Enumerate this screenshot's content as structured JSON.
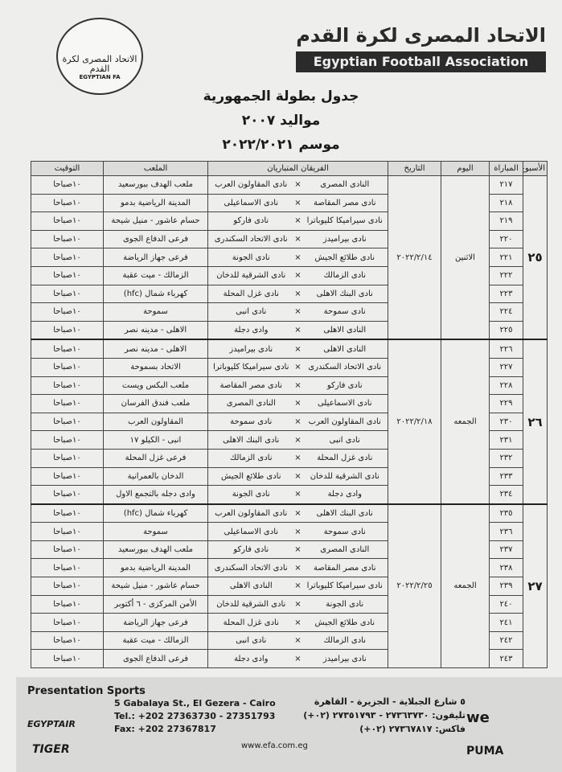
{
  "header": {
    "logo_ar": "الاتحاد المصرى لكرة القدم",
    "logo_en": "EGYPTIAN FA",
    "title_ar": "الاتحاد المصرى لكرة القدم",
    "title_en": "Egyptian Football Association"
  },
  "titles": [
    "جدول بطولة الجمهورية",
    "مواليد ٢٠٠٧",
    "موسم ٢٠٢٢/٢٠٢١"
  ],
  "table": {
    "columns": [
      "الأسبوع",
      "المباراة",
      "اليوم",
      "التاريخ",
      "الفريقان المتباريان",
      "الملعب",
      "التوقيت"
    ],
    "vs": "×",
    "weeks": [
      {
        "week": "٢٥",
        "day": "الاثنين",
        "date": "٢٠٢٢/٢/١٤",
        "matches": [
          {
            "no": "٢١٧",
            "home": "النادى المصرى",
            "away": "نادى المقاولون العرب",
            "venue": "ملعب الهدف ببورسعيد",
            "time": "١٠صباحا"
          },
          {
            "no": "٢١٨",
            "home": "نادى مصر المقاصة",
            "away": "نادى الاسماعيلى",
            "venue": "المدينة الرياضية بدمو",
            "time": "١٠صباحا"
          },
          {
            "no": "٢١٩",
            "home": "نادى سيراميكا كليوباترا",
            "away": "نادى فاركو",
            "venue": "حسام عاشور - منيل شيحة",
            "time": "١٠صباحا"
          },
          {
            "no": "٢٢٠",
            "home": "نادى بيراميدز",
            "away": "نادى الاتحاد السكندرى",
            "venue": "فرعى الدفاع الجوى",
            "time": "١٠صباحا"
          },
          {
            "no": "٢٢١",
            "home": "نادى طلائع الجيش",
            "away": "نادى الجونة",
            "venue": "فرعى جهاز الرياضة",
            "time": "١٠صباحا"
          },
          {
            "no": "٢٢٢",
            "home": "نادى الزمالك",
            "away": "نادى الشرقية للدخان",
            "venue": "الزمالك - ميت عقبة",
            "time": "١٠صباحا"
          },
          {
            "no": "٢٢٣",
            "home": "نادى البنك الاهلى",
            "away": "نادى غزل المحلة",
            "venue": "كهرباء شمال (hfc)",
            "time": "١٠صباحا"
          },
          {
            "no": "٢٢٤",
            "home": "نادى سموحة",
            "away": "نادى انبى",
            "venue": "سموحة",
            "time": "١٠صباحا"
          },
          {
            "no": "٢٢٥",
            "home": "النادى الاهلى",
            "away": "وادى دجلة",
            "venue": "الاهلى - مدينه نصر",
            "time": "١٠صباحا"
          }
        ]
      },
      {
        "week": "٢٦",
        "day": "الجمعه",
        "date": "٢٠٢٢/٢/١٨",
        "matches": [
          {
            "no": "٢٢٦",
            "home": "النادى الاهلى",
            "away": "نادى بيراميدز",
            "venue": "الاهلى - مدينه نصر",
            "time": "١٠صباحا"
          },
          {
            "no": "٢٢٧",
            "home": "نادى الاتحاد السكندرى",
            "away": "نادى سيراميكا كليوباترا",
            "venue": "الاتحاد بسموحة",
            "time": "١٠صباحا"
          },
          {
            "no": "٢٢٨",
            "home": "نادى فاركو",
            "away": "نادى مصر المقاصة",
            "venue": "ملعب البكس ويست",
            "time": "١٠صباحا"
          },
          {
            "no": "٢٢٩",
            "home": "نادى الاسماعيلى",
            "away": "النادى المصرى",
            "venue": "ملعب فندق الفرسان",
            "time": "١٠صباحا"
          },
          {
            "no": "٢٣٠",
            "home": "نادى المقاولون العرب",
            "away": "نادى سموحة",
            "venue": "المقاولون العرب",
            "time": "١٠صباحا"
          },
          {
            "no": "٢٣١",
            "home": "نادى انبى",
            "away": "نادى البنك الاهلى",
            "venue": "انبى - الكيلو ١٧",
            "time": "١٠صباحا"
          },
          {
            "no": "٢٣٢",
            "home": "نادى غزل المحلة",
            "away": "نادى الزمالك",
            "venue": "فرعى غزل المحلة",
            "time": "١٠صباحا"
          },
          {
            "no": "٢٣٣",
            "home": "نادى الشرقية للدخان",
            "away": "نادى طلائع الجيش",
            "venue": "الدخان بالعمرانية",
            "time": "١٠صباحا"
          },
          {
            "no": "٢٣٤",
            "home": "وادى دجلة",
            "away": "نادى الجونة",
            "venue": "وادى دجله بالتجمع الاول",
            "time": "١٠صباحا"
          }
        ]
      },
      {
        "week": "٢٧",
        "day": "الجمعه",
        "date": "٢٠٢٢/٢/٢٥",
        "matches": [
          {
            "no": "٢٣٥",
            "home": "نادى البنك الاهلى",
            "away": "نادى المقاولون العرب",
            "venue": "كهرباء شمال (hfc)",
            "time": "١٠صباحا"
          },
          {
            "no": "٢٣٦",
            "home": "نادى سموحة",
            "away": "نادى الاسماعيلى",
            "venue": "سموحة",
            "time": "١٠صباحا"
          },
          {
            "no": "٢٣٧",
            "home": "النادى المصرى",
            "away": "نادى فاركو",
            "venue": "ملعب الهدف ببورسعيد",
            "time": "١٠صباحا"
          },
          {
            "no": "٢٣٨",
            "home": "نادى مصر المقاصة",
            "away": "نادى الاتحاد السكندرى",
            "venue": "المدينة الرياضية بدمو",
            "time": "١٠صباحا"
          },
          {
            "no": "٢٣٩",
            "home": "نادى سيراميكا كليوباترا",
            "away": "النادى الاهلى",
            "venue": "حسام عاشور - منيل شيحة",
            "time": "١٠صباحا"
          },
          {
            "no": "٢٤٠",
            "home": "نادى الجونة",
            "away": "نادى الشرقية للدخان",
            "venue": "الأمن المركزى - ٦ أكتوبر",
            "time": "١٠صباحا"
          },
          {
            "no": "٢٤١",
            "home": "نادى طلائع الجيش",
            "away": "نادى غزل المحلة",
            "venue": "فرعى جهاز الرياضة",
            "time": "١٠صباحا"
          },
          {
            "no": "٢٤٢",
            "home": "نادى الزمالك",
            "away": "نادى انبى",
            "venue": "الزمالك - ميت عقبة",
            "time": "١٠صباحا"
          },
          {
            "no": "٢٤٣",
            "home": "نادى بيراميدز",
            "away": "وادى دجلة",
            "venue": "فرعى الدفاع الجوى",
            "time": "١٠صباحا"
          }
        ]
      }
    ]
  },
  "footer": {
    "sponsor1": "Presentation Sports",
    "sponsor2": "EGYPTAIR",
    "sponsor3": "TIGER",
    "address_en": "5 Gabalaya St., El Gezera - Cairo",
    "tel_en": "Tel.: +202 27363730 - 27351793",
    "fax_en": "Fax: +202 27367817",
    "address_ar": "٥ شارع الجبلاية - الجزيرة - القاهرة",
    "tel_ar": "تليفون: ٢٧٣٦٣٧٣٠ - ٢٧٣٥١٧٩٣ (٠٢+)",
    "fax_ar": "فاكس: ٢٧٣٦٧٨١٧ (٠٢+)",
    "website": "www.efa.com.eg",
    "sponsor4": "we",
    "sponsor5": "PUMA"
  }
}
